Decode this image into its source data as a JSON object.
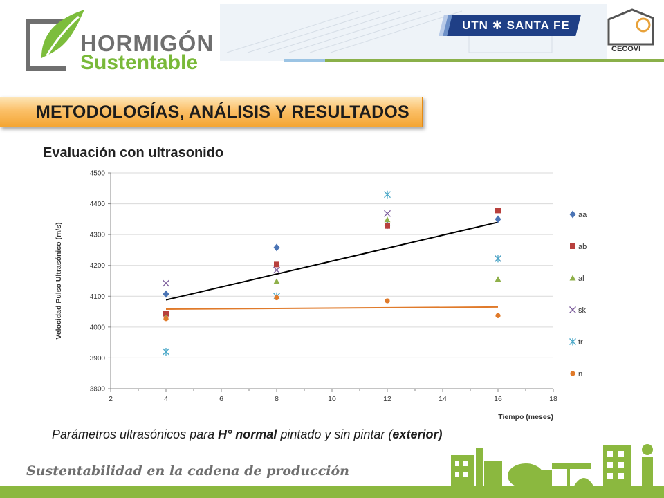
{
  "header": {
    "logo_line1": "HORMIGÓN",
    "logo_line2": "Sustentable",
    "university": "UTN ✱ SANTA FE",
    "lab": "CECOVI"
  },
  "section_title": "METODOLOGÍAS, ANÁLISIS Y RESULTADOS",
  "subtitle": "Evaluación con ultrasonido",
  "caption": {
    "part1": "Parámetros ultrasónicos para ",
    "bold1": "H° normal",
    "part2": " pintado y sin pintar (",
    "bold2": "exterior)"
  },
  "footer": {
    "tagline": "Sustentabilidad en la cadena de producción"
  },
  "colors": {
    "orange_title": "#f3a431",
    "green": "#8bb83f",
    "utn_blue": "#1f3f86"
  },
  "chart_data": {
    "type": "scatter",
    "xlabel": "Tiempo  (meses)",
    "ylabel": "Velocidad Pulso Ultrasónico  (m/s)",
    "xlim": [
      2,
      18
    ],
    "ylim": [
      3800,
      4500
    ],
    "xticks": [
      2,
      4,
      6,
      8,
      10,
      12,
      14,
      16,
      18
    ],
    "yticks": [
      3800,
      3900,
      4000,
      4100,
      4200,
      4300,
      4400,
      4500
    ],
    "grid": "horizontal",
    "legend": "right",
    "series": [
      {
        "name": "aa",
        "marker": "diamond",
        "color": "#4a74b5",
        "x": [
          4,
          8,
          12,
          16
        ],
        "y": [
          4107,
          4258,
          4330,
          4350
        ]
      },
      {
        "name": "ab",
        "marker": "square",
        "color": "#b8403d",
        "x": [
          4,
          8,
          12,
          16
        ],
        "y": [
          4043,
          4203,
          4328,
          4378
        ]
      },
      {
        "name": "al",
        "marker": "triangle",
        "color": "#8fb04a",
        "x": [
          4,
          8,
          12,
          16
        ],
        "y": [
          4030,
          4148,
          4348,
          4155
        ]
      },
      {
        "name": "sk",
        "marker": "x",
        "color": "#7a5a9a",
        "x": [
          4,
          8,
          12,
          16
        ],
        "y": [
          4142,
          4185,
          4368,
          4222
        ]
      },
      {
        "name": "tr",
        "marker": "star",
        "color": "#4aa8c8",
        "x": [
          4,
          8,
          12,
          16
        ],
        "y": [
          3920,
          4100,
          4430,
          4222
        ]
      },
      {
        "name": "n",
        "marker": "circle",
        "color": "#e07a2a",
        "x": [
          4,
          8,
          12,
          16
        ],
        "y": [
          4027,
          4095,
          4085,
          4037
        ]
      }
    ],
    "trendlines": [
      {
        "color": "#000000",
        "x": [
          4,
          16
        ],
        "y": [
          4088,
          4340
        ]
      },
      {
        "color": "#e07a2a",
        "x": [
          4,
          16
        ],
        "y": [
          4058,
          4065
        ]
      }
    ]
  }
}
